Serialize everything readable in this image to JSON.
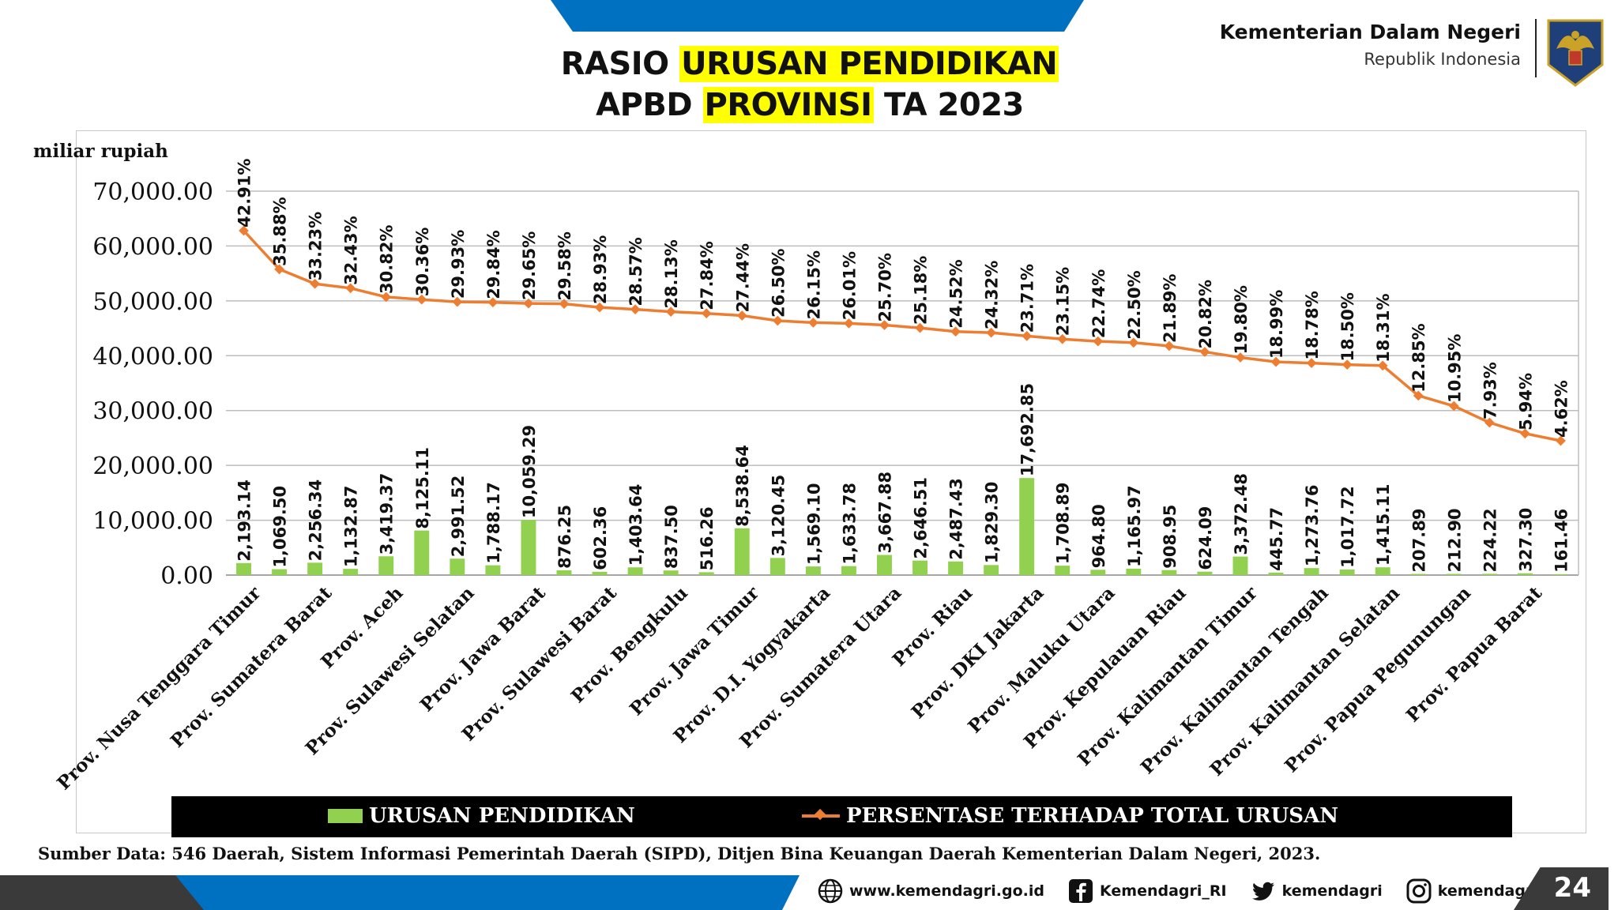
{
  "header": {
    "title_line1_plain": "RASIO ",
    "title_line1_highlight": "URUSAN PENDIDIKAN",
    "title_line2_plain1": "APBD ",
    "title_line2_highlight": "PROVINSI",
    "title_line2_plain2": " TA 2023",
    "ministry_name": "Kementerian Dalam Negeri",
    "ministry_sub": "Republik Indonesia",
    "emblem_icon": "garuda-emblem-icon"
  },
  "colors": {
    "bar": "#92d050",
    "line": "#ed7d31",
    "banner_blue": "#0070c0",
    "highlight": "#ffff00"
  },
  "chart_data": {
    "type": "bar",
    "unit_label": "miliar rupiah",
    "ylim": [
      0,
      70000
    ],
    "yticks": [
      0,
      10000,
      20000,
      30000,
      40000,
      50000,
      60000,
      70000
    ],
    "ytick_labels": [
      "0.00",
      "10,000.00",
      "20,000.00",
      "30,000.00",
      "40,000.00",
      "50,000.00",
      "60,000.00",
      "70,000.00"
    ],
    "grid": true,
    "legend_position": "bottom",
    "categories": [
      "Prov. Nusa Tenggara Timur",
      "",
      "Prov. Sumatera Barat",
      "",
      "Prov. Aceh",
      "",
      "Prov. Sulawesi Selatan",
      "",
      "Prov. Jawa Barat",
      "",
      "Prov. Sulawesi Barat",
      "",
      "Prov. Bengkulu",
      "",
      "Prov. Jawa Timur",
      "",
      "Prov. D.I. Yogyakarta",
      "",
      "Prov. Sumatera Utara",
      "",
      "Prov. Riau",
      "",
      "Prov. DKI Jakarta",
      "",
      "Prov. Maluku Utara",
      "",
      "Prov. Kepulauan Riau",
      "",
      "Prov. Kalimantan Timur",
      "",
      "Prov. Kalimantan Tengah",
      "",
      "Prov. Kalimantan Selatan",
      "",
      "Prov. Papua Pegunungan",
      "",
      "Prov. Papua Barat",
      ""
    ],
    "series": [
      {
        "name": "URUSAN PENDIDIKAN",
        "type": "bar",
        "values": [
          2193.14,
          1069.5,
          2256.34,
          1132.87,
          3419.37,
          8125.11,
          2991.52,
          1788.17,
          10059.29,
          876.25,
          602.36,
          1403.64,
          837.5,
          516.26,
          8538.64,
          3120.45,
          1569.1,
          1633.78,
          3667.88,
          2646.51,
          2487.43,
          1829.3,
          17692.85,
          1708.89,
          964.8,
          1165.97,
          908.95,
          624.09,
          3372.48,
          445.77,
          1273.76,
          1017.72,
          1415.11,
          207.89,
          212.9,
          224.22,
          327.3,
          161.46
        ],
        "labels": [
          "2,193.14",
          "1,069.50",
          "2,256.34",
          "1,132.87",
          "3,419.37",
          "8,125.11",
          "2,991.52",
          "1,788.17",
          "10,059.29",
          "876.25",
          "602.36",
          "1,403.64",
          "837.50",
          "516.26",
          "8,538.64",
          "3,120.45",
          "1,569.10",
          "1,633.78",
          "3,667.88",
          "2,646.51",
          "2,487.43",
          "1,829.30",
          "17,692.85",
          "1,708.89",
          "964.80",
          "1,165.97",
          "908.95",
          "624.09",
          "3,372.48",
          "445.77",
          "1,273.76",
          "1,017.72",
          "1,415.11",
          "207.89",
          "212.90",
          "224.22",
          "327.30",
          "161.46"
        ]
      },
      {
        "name": "PERSENTASE TERHADAP TOTAL URUSAN",
        "type": "line",
        "values": [
          42.91,
          35.88,
          33.23,
          32.43,
          30.82,
          30.36,
          29.93,
          29.84,
          29.65,
          29.58,
          28.93,
          28.57,
          28.13,
          27.84,
          27.44,
          26.5,
          26.15,
          26.01,
          25.7,
          25.18,
          24.52,
          24.32,
          23.71,
          23.15,
          22.74,
          22.5,
          21.89,
          20.82,
          19.8,
          18.99,
          18.78,
          18.5,
          18.31,
          12.85,
          10.95,
          7.93,
          5.94,
          4.62
        ],
        "labels": [
          "42.91%",
          "35.88%",
          "33.23%",
          "32.43%",
          "30.82%",
          "30.36%",
          "29.93%",
          "29.84%",
          "29.65%",
          "29.58%",
          "28.93%",
          "28.57%",
          "28.13%",
          "27.84%",
          "27.44%",
          "26.50%",
          "26.15%",
          "26.01%",
          "25.70%",
          "25.18%",
          "24.52%",
          "24.32%",
          "23.71%",
          "23.15%",
          "22.74%",
          "22.50%",
          "21.89%",
          "20.82%",
          "19.80%",
          "18.99%",
          "18.78%",
          "18.50%",
          "18.31%",
          "12.85%",
          "10.95%",
          "7.93%",
          "5.94%",
          "4.62%"
        ]
      }
    ]
  },
  "source": "Sumber Data: 546 Daerah, Sistem Informasi Pemerintah Daerah (SIPD), Ditjen Bina Keuangan Daerah Kementerian Dalam Negeri, 2023.",
  "footer": {
    "links": [
      {
        "icon": "globe-icon",
        "label": "www.kemendagri.go.id"
      },
      {
        "icon": "facebook-icon",
        "label": "Kemendagri_RI"
      },
      {
        "icon": "twitter-icon",
        "label": "kemendagri"
      },
      {
        "icon": "instagram-icon",
        "label": "kemendagri"
      }
    ],
    "page_number": "24"
  }
}
